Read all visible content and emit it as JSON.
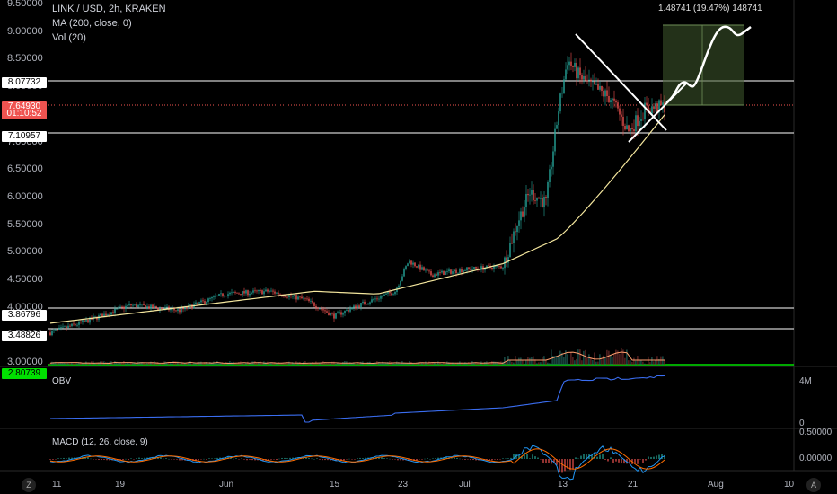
{
  "header": {
    "symbol": "LINK / USD, 2h, KRAKEN",
    "ma": "MA (200, close, 0)",
    "vol": "Vol (20)"
  },
  "measure_label": "1.48741 (19.47%) 148741",
  "price_axis": {
    "ticks": [
      "9.50000",
      "9.00000",
      "8.50000",
      "8.00000",
      "7.50000",
      "7.00000",
      "6.50000",
      "6.00000",
      "5.50000",
      "5.00000",
      "4.50000",
      "4.00000",
      "3.50000",
      "3.00000"
    ],
    "labels": [
      {
        "text": "8.07732",
        "price": 8.07732,
        "style": "white"
      },
      {
        "text": "7.64930",
        "price": 7.6493,
        "style": "red"
      },
      {
        "text": "01:10:52",
        "price": 7.52,
        "style": "red"
      },
      {
        "text": "7.10957",
        "price": 7.10957,
        "style": "white"
      },
      {
        "text": "3.86796",
        "price": 3.86796,
        "style": "white"
      },
      {
        "text": "3.48826",
        "price": 3.48826,
        "style": "white"
      },
      {
        "text": "2.80739",
        "price": 2.80739,
        "style": "green"
      }
    ]
  },
  "obv_panel": {
    "title": "OBV",
    "ticks": [
      "4M",
      "0"
    ]
  },
  "macd_panel": {
    "title": "MACD (12, 26, close, 9)",
    "ticks": [
      "0.50000",
      "0.00000"
    ]
  },
  "time_axis": {
    "ticks": [
      "11",
      "19",
      "Jun",
      "15",
      "23",
      "Jul",
      "13",
      "21",
      "Aug",
      "10"
    ]
  },
  "corner_buttons": {
    "left": "Z",
    "right": "A"
  },
  "colors": {
    "background": "#000000",
    "up": "#26a69a",
    "down": "#ef5350",
    "ma": "#f5e79e",
    "obv": "#2962ff",
    "macd": "#2196f3",
    "signal": "#ff6d00",
    "target_box": "#3f5a2d"
  }
}
